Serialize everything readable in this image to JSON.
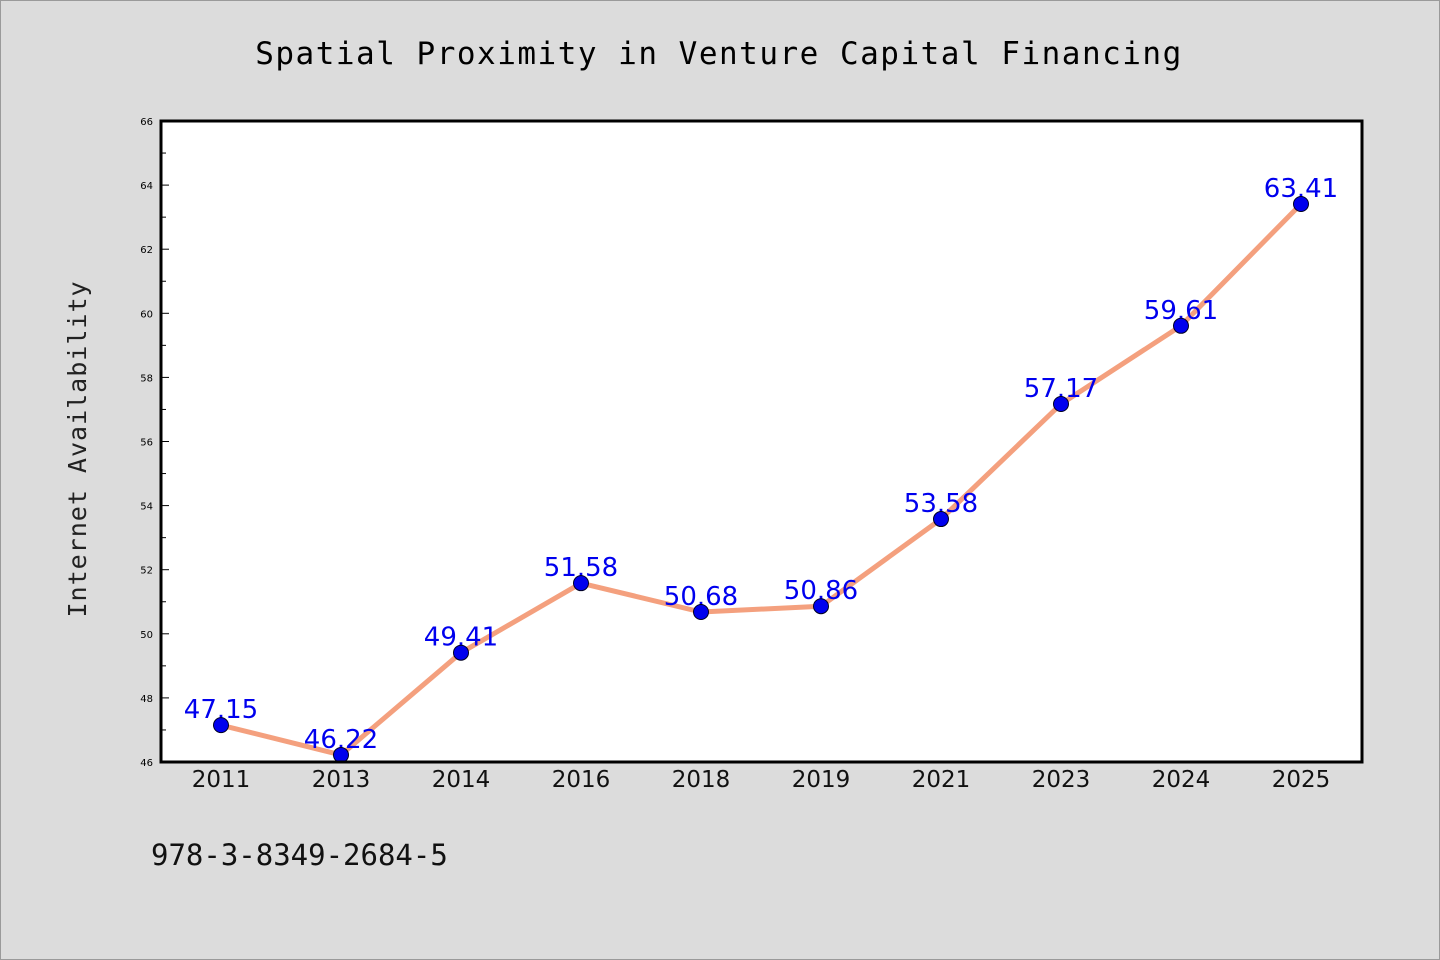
{
  "chart_data": {
    "type": "line",
    "title": "Spatial Proximity in Venture Capital Financing",
    "xlabel": "",
    "ylabel": "Internet Availability",
    "categories": [
      "2011",
      "2013",
      "2014",
      "2016",
      "2018",
      "2019",
      "2021",
      "2023",
      "2024",
      "2025"
    ],
    "series": [
      {
        "values": [
          47.15,
          46.22,
          49.41,
          51.58,
          50.68,
          50.86,
          53.58,
          57.17,
          59.61,
          63.41
        ],
        "data_labels": [
          "47.15",
          "46.22",
          "49.41",
          "51.58",
          "50.68",
          "50.86",
          "53.58",
          "57.17",
          "59.61",
          "63.41"
        ]
      }
    ],
    "ylim": [
      46,
      66
    ],
    "yticks": [
      "46",
      "48",
      "50",
      "52",
      "54",
      "56",
      "58",
      "60",
      "62",
      "64",
      "66"
    ],
    "grid": false,
    "legend": "none",
    "line_color": "#f4a07e",
    "marker_color": "#0000ee",
    "label_color": "#0000ee",
    "background_color": "#dcdcdc",
    "plot_background_color": "#ffffff"
  },
  "footer": {
    "isbn": "978-3-8349-2684-5"
  }
}
